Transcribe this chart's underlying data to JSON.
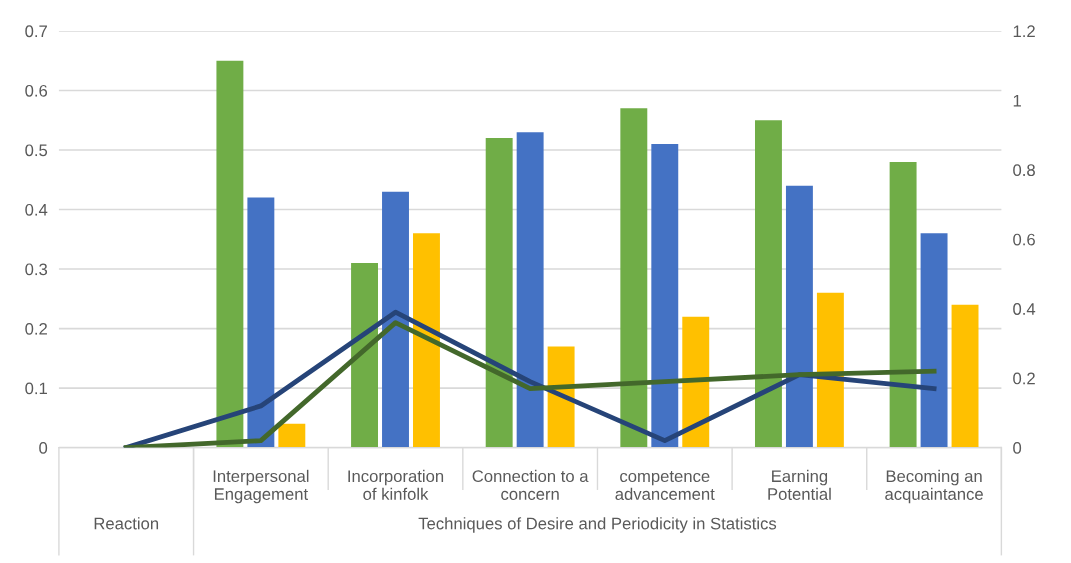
{
  "chart_data": {
    "type": "bar",
    "categories": [
      null,
      "Interpersonal\nEngagement",
      "Incorporation\nof kinfolk",
      "Connection to a\nconcern",
      "competence\nadvancement",
      "Earning\nPotential",
      "Becoming an\nacquaintance"
    ],
    "series": [
      {
        "color": "#70ad47",
        "values": [
          null,
          0.65,
          0.31,
          0.52,
          0.57,
          0.55,
          0.48
        ]
      },
      {
        "color": "#4472c4",
        "values": [
          null,
          0.42,
          0.43,
          0.53,
          0.51,
          0.44,
          0.36
        ]
      },
      {
        "color": "#ffc000",
        "values": [
          null,
          0.04,
          0.36,
          0.17,
          0.22,
          0.26,
          0.24
        ]
      },
      {
        "type": "line",
        "axis": "y2",
        "color": "#264478",
        "values": [
          0,
          0.12,
          0.39,
          0.19,
          0.02,
          0.21,
          0.17
        ]
      },
      {
        "type": "line",
        "axis": "y2",
        "color": "#43682b",
        "values": [
          0,
          0.02,
          0.36,
          0.17,
          0.19,
          0.21,
          0.22
        ]
      }
    ],
    "ylim": [
      0,
      0.7
    ],
    "yticks": [
      {
        "value": 0,
        "label": "0"
      },
      0.1,
      0.2,
      0.3,
      0.4,
      0.5,
      0.6,
      0.7
    ],
    "y2lim": [
      0,
      1.2
    ],
    "y2ticks": [
      {
        "value": 0,
        "label": "0"
      },
      0.2,
      0.4,
      0.6,
      0.8,
      {
        "value": 1.0,
        "label": "1"
      },
      1.2
    ],
    "grid": "y",
    "legend": false,
    "annotations": [
      "Reaction",
      "Techniques of Desire and Periodicity in Statistics"
    ]
  }
}
